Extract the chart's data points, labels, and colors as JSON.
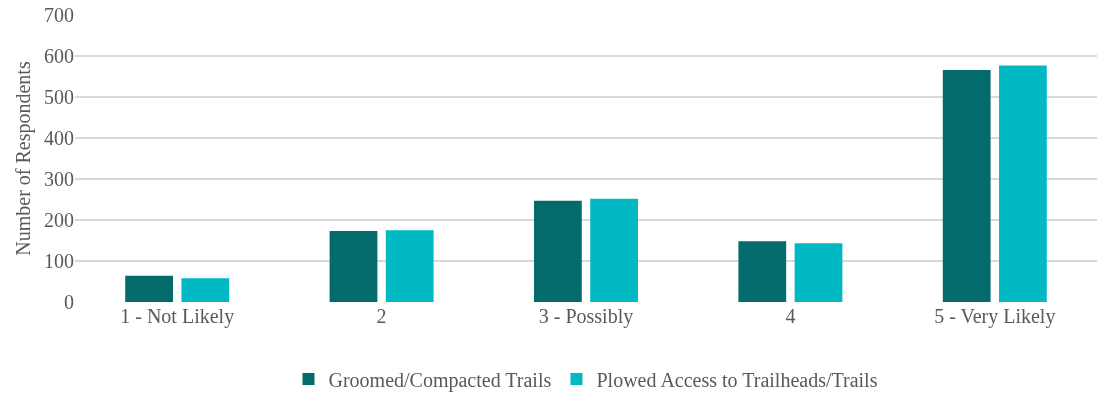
{
  "chart_data": {
    "type": "bar",
    "ylabel": "Number of Respondents",
    "categories": [
      "1 - Not Likely",
      "2",
      "3 - Possibly",
      "4",
      "5 - Very Likely"
    ],
    "series": [
      {
        "name": "Groomed/Compacted Trails",
        "color": "#036b6c",
        "values": [
          64,
          173,
          247,
          148,
          566
        ]
      },
      {
        "name": "Plowed Access to Trailheads/Trails",
        "color": "#00b9c3",
        "values": [
          58,
          175,
          252,
          143,
          577
        ]
      }
    ],
    "ylim": [
      0,
      700
    ],
    "yticks": [
      0,
      100,
      200,
      300,
      400,
      500,
      600,
      700
    ],
    "grid": "y",
    "legend": "bottom"
  }
}
